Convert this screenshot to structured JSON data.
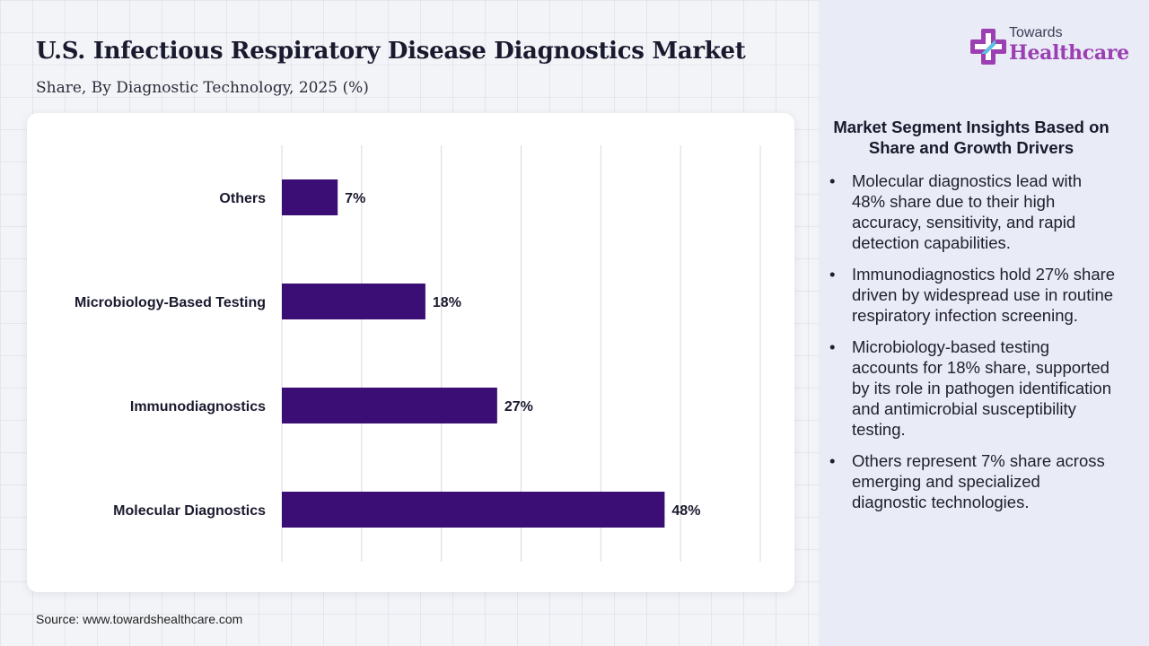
{
  "header": {
    "title": "U.S. Infectious Respiratory Disease Diagnostics Market",
    "subtitle": "Share, By Diagnostic Technology, 2025 (%)"
  },
  "brand": {
    "top": "Towards",
    "main": "Healthcare",
    "color": "#9b3fb3"
  },
  "chart_data": {
    "type": "bar",
    "orientation": "horizontal",
    "categories": [
      "Others",
      "Microbiology-Based Testing",
      "Immunodiagnostics",
      "Molecular Diagnostics"
    ],
    "values": [
      7,
      18,
      27,
      48
    ],
    "value_labels": [
      "7%",
      "18%",
      "27%",
      "48%"
    ],
    "xlim": [
      0,
      60
    ],
    "grid": true,
    "bar_color": "#3a0e74"
  },
  "insights": {
    "title": "Market Segment Insights Based on Share and Growth Drivers",
    "items": [
      "Molecular diagnostics lead with 48% share due to their high accuracy, sensitivity, and rapid detection capabilities.",
      "Immunodiagnostics hold 27% share driven by widespread use in routine respiratory infection screening.",
      "Microbiology-based testing accounts for 18% share, supported by its role in pathogen identification and antimicrobial susceptibility testing.",
      "Others represent 7% share across emerging and specialized diagnostic technologies."
    ]
  },
  "footer": {
    "source": "Source: www.towardshealthcare.com"
  }
}
